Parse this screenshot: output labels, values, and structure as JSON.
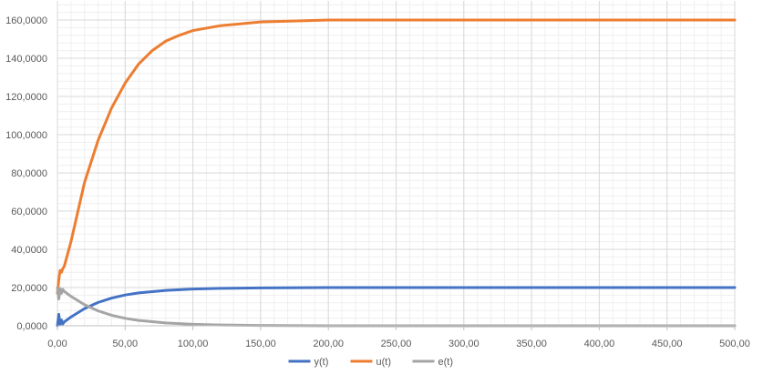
{
  "chart_data": {
    "type": "line",
    "title": "",
    "xlabel": "",
    "ylabel": "",
    "xlim": [
      0,
      500
    ],
    "ylim": [
      0,
      170
    ],
    "x_ticks": [
      0,
      50,
      100,
      150,
      200,
      250,
      300,
      350,
      400,
      450,
      500
    ],
    "x_tick_labels": [
      "0,00",
      "50,00",
      "100,00",
      "150,00",
      "200,00",
      "250,00",
      "300,00",
      "350,00",
      "400,00",
      "450,00",
      "500,00"
    ],
    "y_ticks": [
      0,
      20,
      40,
      60,
      80,
      100,
      120,
      140,
      160
    ],
    "y_tick_labels": [
      "0,0000",
      "20,0000",
      "40,0000",
      "60,0000",
      "80,0000",
      "100,0000",
      "120,0000",
      "140,0000",
      "160,0000"
    ],
    "grid": true,
    "minor_grid": true,
    "legend_position": "bottom",
    "series": [
      {
        "name": "y(t)",
        "color": "#4472C4",
        "x": [
          0,
          1,
          2,
          3,
          4,
          5,
          10,
          20,
          30,
          40,
          50,
          60,
          80,
          100,
          120,
          150,
          200,
          250,
          300,
          400,
          500
        ],
        "y": [
          0,
          6,
          0.5,
          3,
          1,
          2,
          4.6,
          9.0,
          12.2,
          14.5,
          16.1,
          17.2,
          18.5,
          19.2,
          19.6,
          19.8,
          20,
          20,
          20,
          20,
          20
        ]
      },
      {
        "name": "u(t)",
        "color": "#ED7D31",
        "x": [
          0,
          1,
          2,
          3,
          4,
          5,
          10,
          20,
          30,
          40,
          50,
          60,
          70,
          80,
          90,
          100,
          120,
          150,
          200,
          250,
          300,
          400,
          500
        ],
        "y": [
          17,
          24,
          29,
          28,
          30,
          31,
          44,
          75,
          97,
          114,
          127,
          137,
          144,
          149,
          152,
          154.5,
          157,
          159,
          160,
          160,
          160,
          160,
          160
        ]
      },
      {
        "name": "e(t)",
        "color": "#A5A5A5",
        "x": [
          0,
          1,
          2,
          3,
          4,
          5,
          10,
          20,
          30,
          40,
          50,
          60,
          80,
          100,
          120,
          150,
          200,
          250,
          300,
          400,
          500
        ],
        "y": [
          20,
          14,
          19.5,
          17,
          19,
          18,
          15.4,
          11.0,
          7.8,
          5.5,
          3.9,
          2.8,
          1.5,
          0.8,
          0.4,
          0.2,
          0,
          0,
          0,
          0,
          0
        ]
      }
    ]
  }
}
